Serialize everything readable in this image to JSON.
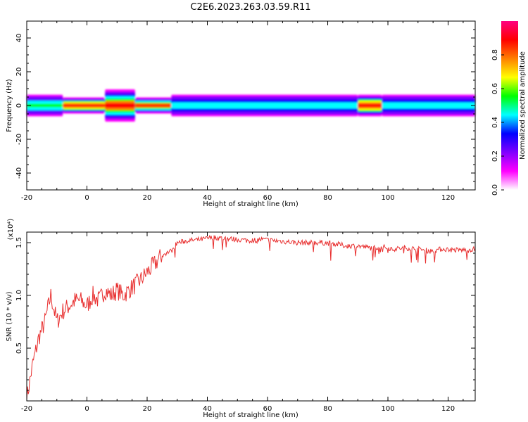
{
  "title": "C2E6.2023.263.03.59.R11",
  "chart_data": [
    {
      "type": "heatmap",
      "name": "spectrogram",
      "xlabel": "Height of straight line (km)",
      "ylabel": "Frequency (Hz)",
      "xlim": [
        -20,
        129
      ],
      "ylim": [
        -50,
        50
      ],
      "xticks": [
        -20,
        0,
        20,
        40,
        60,
        80,
        100,
        120
      ],
      "yticks": [
        -40,
        -20,
        0,
        20,
        40
      ],
      "colorbar": {
        "label": "Normalized spectral amplitude",
        "range": [
          0,
          1
        ],
        "ticks": [
          "0.0",
          "0.2",
          "0.4",
          "0.6",
          "0.8"
        ],
        "colors": [
          "#ffffff",
          "#ff00ff",
          "#8000ff",
          "#0000ff",
          "#00ffff",
          "#00ff00",
          "#ffff00",
          "#ff8000",
          "#ff0000",
          "#ff0080"
        ]
      },
      "band": {
        "center_frequency": 0,
        "segments": [
          {
            "x": [
              -20,
              -8
            ],
            "halfwidth": 4,
            "peak": 0.55
          },
          {
            "x": [
              -8,
              6
            ],
            "halfwidth": 3,
            "peak": 0.9
          },
          {
            "x": [
              6,
              16
            ],
            "halfwidth": 6,
            "peak": 0.85
          },
          {
            "x": [
              16,
              28
            ],
            "halfwidth": 3,
            "peak": 0.85
          },
          {
            "x": [
              28,
              90
            ],
            "halfwidth": 4,
            "peak": 0.45
          },
          {
            "x": [
              90,
              98
            ],
            "halfwidth": 4,
            "peak": 0.9
          },
          {
            "x": [
              98,
              129
            ],
            "halfwidth": 4,
            "peak": 0.45
          }
        ]
      }
    },
    {
      "type": "line",
      "name": "snr",
      "xlabel": "Height of straight line (km)",
      "ylabel": "SNR (10 * v/v)",
      "multiplier": "(x10⁴)",
      "xlim": [
        -20,
        129
      ],
      "ylim": [
        0,
        1.6
      ],
      "xticks": [
        -20,
        0,
        20,
        40,
        60,
        80,
        100,
        120
      ],
      "yticks": [
        0.5,
        1.0,
        1.5
      ],
      "ytick_labels": [
        "0.5",
        "1.0",
        "1.5"
      ],
      "color": "#e83030",
      "x": [
        -20,
        -18,
        -16,
        -14,
        -12,
        -10,
        -8,
        -6,
        -4,
        -2,
        0,
        2,
        4,
        6,
        8,
        10,
        12,
        14,
        16,
        18,
        20,
        22,
        24,
        26,
        28,
        30,
        34,
        38,
        42,
        46,
        50,
        54,
        58,
        62,
        66,
        70,
        74,
        78,
        82,
        86,
        90,
        94,
        98,
        102,
        106,
        110,
        114,
        118,
        122,
        126,
        129
      ],
      "y": [
        0.02,
        0.35,
        0.6,
        0.75,
        1.0,
        0.75,
        0.85,
        0.9,
        0.95,
        0.95,
        0.9,
        1.0,
        0.95,
        1.05,
        1.0,
        1.05,
        1.0,
        1.05,
        1.1,
        1.15,
        1.22,
        1.28,
        1.35,
        1.4,
        1.42,
        1.5,
        1.52,
        1.53,
        1.55,
        1.54,
        1.53,
        1.52,
        1.53,
        1.52,
        1.51,
        1.5,
        1.5,
        1.5,
        1.49,
        1.47,
        1.47,
        1.45,
        1.46,
        1.44,
        1.45,
        1.44,
        1.42,
        1.44,
        1.43,
        1.43,
        1.44
      ]
    }
  ]
}
